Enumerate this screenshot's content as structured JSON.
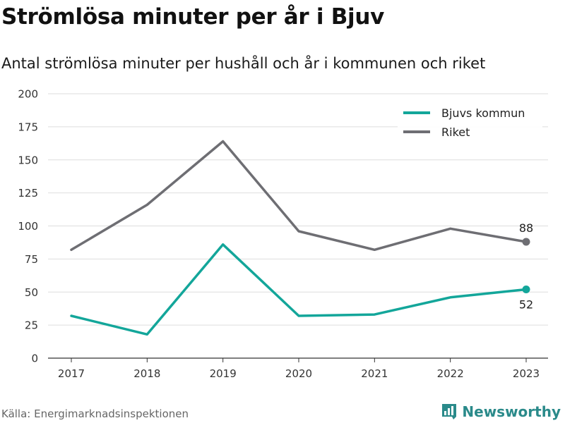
{
  "title": "Strömlösa minuter per år i Bjuv",
  "subtitle": "Antal strömlösa minuter per hushåll och år i kommunen och riket",
  "source": "Källa: Energimarknadsinspektionen",
  "brand": {
    "name": "Newsworthy",
    "icon": "newsworthy-logo-icon",
    "color": "#2a8a8a"
  },
  "chart_data": {
    "type": "line",
    "title": "",
    "xlabel": "",
    "ylabel": "",
    "ylim": [
      0,
      200
    ],
    "yticks": [
      0,
      25,
      50,
      75,
      100,
      125,
      150,
      175,
      200
    ],
    "x": [
      "2017",
      "2018",
      "2019",
      "2020",
      "2021",
      "2022",
      "2023"
    ],
    "grid": true,
    "legend_position": "top-right",
    "series": [
      {
        "name": "Bjuvs kommun",
        "color": "#13a69a",
        "values": [
          32,
          18,
          86,
          32,
          33,
          46,
          52
        ],
        "end_label": "52"
      },
      {
        "name": "Riket",
        "color": "#6e6e73",
        "values": [
          82,
          116,
          164,
          96,
          82,
          98,
          88
        ],
        "end_label": "88"
      }
    ]
  }
}
